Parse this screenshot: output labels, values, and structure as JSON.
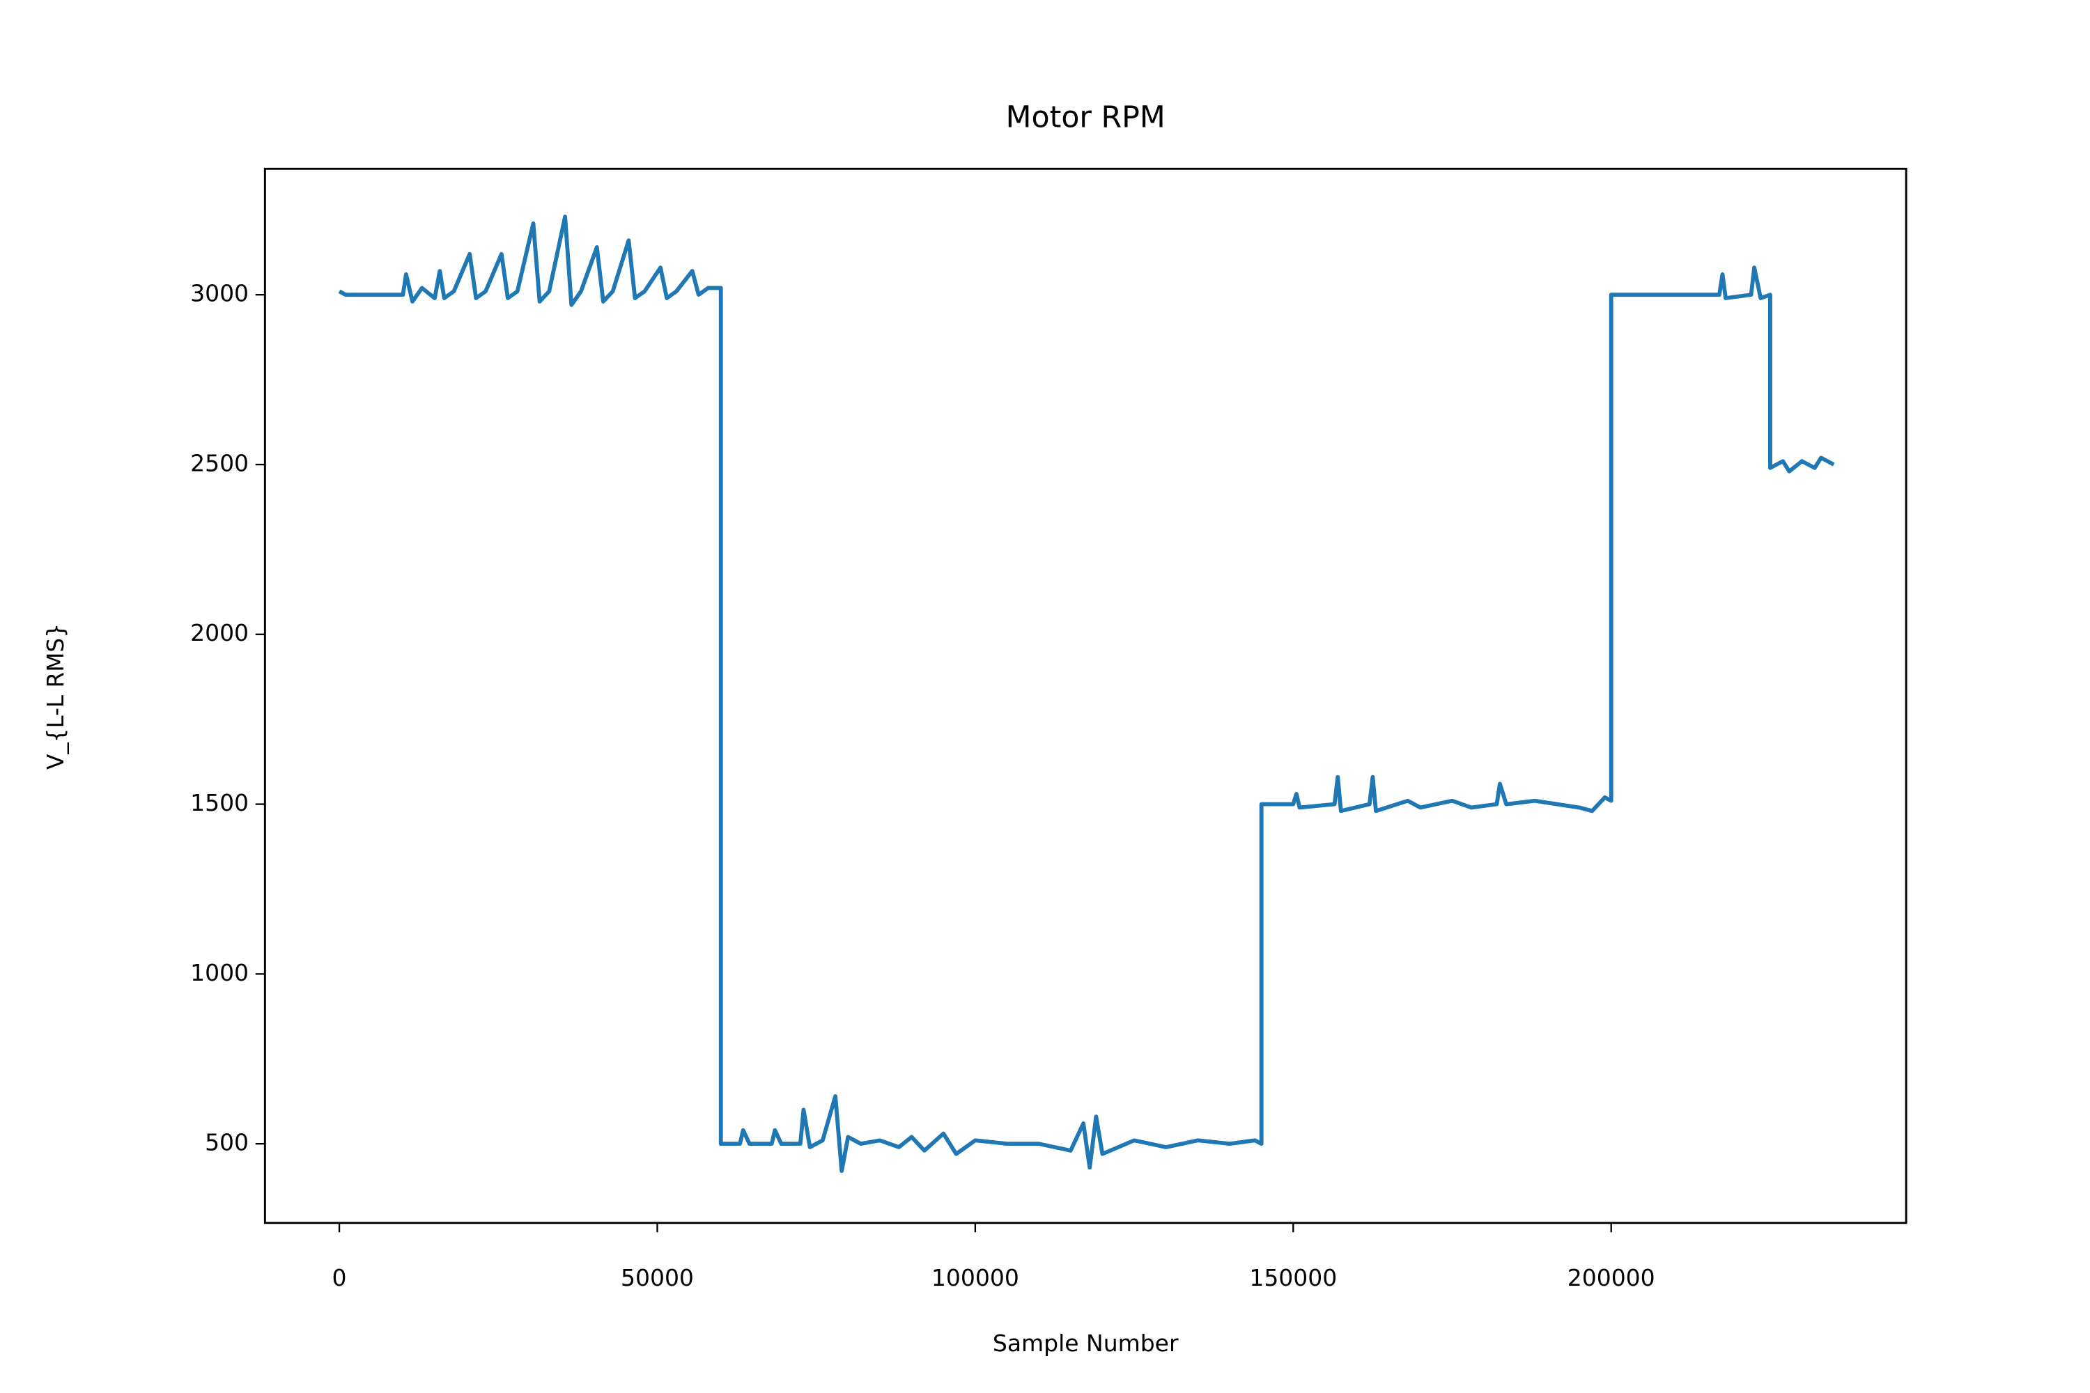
{
  "chart_data": {
    "type": "line",
    "title": "Motor RPM",
    "x_label": "Sample Number",
    "y_label": "V_{L-L RMS}",
    "color": "#1f77b4",
    "x": [
      0,
      1000,
      5000,
      10000,
      10500,
      11500,
      13000,
      15000,
      15800,
      16500,
      18000,
      20500,
      21500,
      23000,
      25500,
      26500,
      28000,
      30500,
      31500,
      33000,
      35500,
      36500,
      38000,
      40500,
      41500,
      43000,
      45500,
      46500,
      48000,
      50500,
      51500,
      53000,
      55500,
      56500,
      58000,
      60000,
      60000,
      63000,
      63500,
      64500,
      68000,
      68500,
      69500,
      72500,
      73000,
      74000,
      76000,
      78000,
      79000,
      80000,
      82000,
      85000,
      88000,
      90000,
      92000,
      95000,
      97000,
      100000,
      105000,
      110000,
      115000,
      117000,
      118000,
      119000,
      120000,
      125000,
      130000,
      135000,
      140000,
      144000,
      145000,
      145000,
      150000,
      150500,
      151000,
      156500,
      157000,
      157500,
      162000,
      162500,
      163000,
      168000,
      170000,
      175000,
      178000,
      182000,
      182500,
      183500,
      188000,
      195000,
      197000,
      199000,
      200000,
      200000,
      210000,
      217000,
      217500,
      218000,
      222000,
      222500,
      223500,
      225000,
      225000,
      227000,
      228000,
      230000,
      232000,
      233000,
      235000
    ],
    "values": [
      3010,
      3000,
      3000,
      3000,
      3060,
      2980,
      3020,
      2990,
      3070,
      2990,
      3010,
      3120,
      2990,
      3010,
      3120,
      2990,
      3010,
      3210,
      2980,
      3010,
      3230,
      2970,
      3010,
      3140,
      2980,
      3010,
      3160,
      2990,
      3010,
      3080,
      2990,
      3010,
      3070,
      3000,
      3020,
      3020,
      500,
      500,
      540,
      500,
      500,
      540,
      500,
      500,
      600,
      490,
      510,
      640,
      420,
      520,
      500,
      510,
      490,
      520,
      480,
      530,
      470,
      510,
      500,
      500,
      480,
      560,
      430,
      580,
      470,
      510,
      490,
      510,
      500,
      510,
      500,
      1500,
      1500,
      1530,
      1490,
      1500,
      1580,
      1480,
      1500,
      1580,
      1480,
      1510,
      1490,
      1510,
      1490,
      1500,
      1560,
      1500,
      1510,
      1490,
      1480,
      1520,
      1510,
      3000,
      3000,
      3000,
      3060,
      2990,
      3000,
      3080,
      2990,
      3000,
      2490,
      2510,
      2480,
      2510,
      2490,
      2520,
      2500
    ],
    "xlim": [
      -11690,
      246380
    ],
    "ylim": [
      267,
      3371
    ],
    "xticks": [
      0,
      50000,
      100000,
      150000,
      200000
    ],
    "yticks": [
      500,
      1000,
      1500,
      2000,
      2500,
      3000
    ]
  }
}
